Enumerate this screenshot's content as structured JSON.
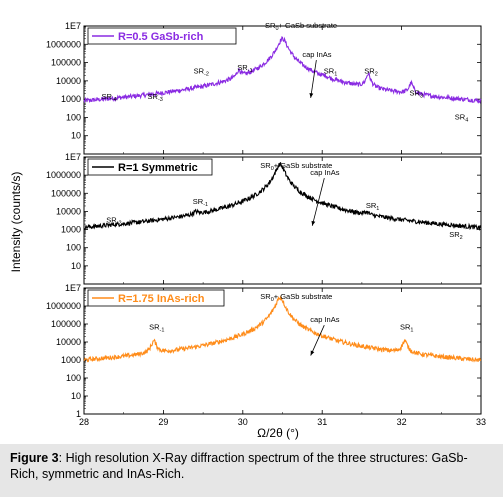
{
  "figure": {
    "caption_label": "Figure 3",
    "caption_text": ": High resolution X-Ray diffraction spectrum of the three structures: GaSb-Rich, symmetric and InAs-Rich."
  },
  "chart_data": {
    "type": "line",
    "ylabel": "Intensity (counts/s)",
    "xlabel": "Ω/2θ (°)",
    "xlim": [
      28,
      33
    ],
    "x_ticks": [
      "28",
      "29",
      "30",
      "31",
      "32",
      "33"
    ],
    "y_scale": "log",
    "panels": [
      {
        "legend": "R=0.5  GaSb-rich",
        "color": "#8a2be2",
        "ylim_log": [
          0,
          7
        ],
        "y_ticks": [
          "10",
          "100",
          "1000",
          "10000",
          "100000",
          "1000000",
          "1E7"
        ],
        "baseline": 0.45,
        "noise": 0.12,
        "peaks": [
          {
            "x": 28.36,
            "h": 5.7,
            "w": 0.025,
            "name": "SR",
            "sub": "-4"
          },
          {
            "x": 28.86,
            "h": 4.1,
            "w": 0.025,
            "name": "SR",
            "sub": "-3"
          },
          {
            "x": 29.41,
            "h": 7.2,
            "w": 0.025,
            "name": "SR",
            "sub": "-2"
          },
          {
            "x": 29.95,
            "h": 24000,
            "w": 0.025,
            "name": "SR",
            "sub": "-1"
          },
          {
            "x": 30.5,
            "h": 2000000,
            "w": 0.05,
            "name": "SR0+ GaSb substrate"
          },
          {
            "x": 30.88,
            "h": 800,
            "w": 0.2,
            "name": "cap InAs"
          },
          {
            "x": 31.04,
            "h": 2500,
            "w": 0.025,
            "name": "SR",
            "sub": "1"
          },
          {
            "x": 31.58,
            "h": 20000,
            "w": 0.025,
            "name": "SR",
            "sub": "2"
          },
          {
            "x": 32.12,
            "h": 5500,
            "w": 0.025,
            "name": "SR",
            "sub": "3"
          },
          {
            "x": 32.67,
            "h": 6,
            "w": 0.025,
            "name": "SR",
            "sub": "4"
          }
        ],
        "labels": [
          {
            "text": "SR",
            "sub": "-4",
            "x": 28.22,
            "y": 3.0
          },
          {
            "text": "SR",
            "sub": "-3",
            "x": 28.8,
            "y": 3.0
          },
          {
            "text": "SR",
            "sub": "-2",
            "x": 29.38,
            "y": 4.4
          },
          {
            "text": "SR",
            "sub": "-1",
            "x": 29.93,
            "y": 4.6
          },
          {
            "text": "SR",
            "sub": "0",
            "extra": "+ GaSb substrate",
            "x": 30.28,
            "y": 6.9
          },
          {
            "text": "cap InAs",
            "x": 30.75,
            "y": 5.3
          },
          {
            "text": "SR",
            "sub": "1",
            "x": 31.02,
            "y": 4.4
          },
          {
            "text": "SR",
            "sub": "2",
            "x": 31.53,
            "y": 4.4
          },
          {
            "text": "SR",
            "sub": "3",
            "x": 32.1,
            "y": 3.2
          },
          {
            "text": "SR",
            "sub": "4",
            "x": 32.67,
            "y": 1.9
          }
        ]
      },
      {
        "legend": "R=1 Symmetric",
        "color": "#000000",
        "ylim_log": [
          0,
          7
        ],
        "y_ticks": [
          "10",
          "100",
          "1000",
          "10000",
          "100000",
          "1000000",
          "1E7"
        ],
        "baseline": 0.6,
        "noise": 0.12,
        "peaks": [
          {
            "x": 28.37,
            "h": 60,
            "w": 0.03,
            "name": "SR",
            "sub": "-2"
          },
          {
            "x": 29.41,
            "h": 2800,
            "w": 0.03,
            "name": "SR",
            "sub": "-1"
          },
          {
            "x": 30.47,
            "h": 4000000,
            "w": 0.045,
            "name": "SR0+ GaSb substrate"
          },
          {
            "x": 30.9,
            "h": 1100,
            "w": 0.18,
            "name": "cap InAs"
          },
          {
            "x": 31.56,
            "h": 2500,
            "w": 0.03,
            "name": "SR",
            "sub": "1"
          },
          {
            "x": 32.63,
            "h": 60,
            "w": 0.03,
            "name": "SR",
            "sub": "2"
          }
        ],
        "labels": [
          {
            "text": "SR",
            "sub": "-2",
            "x": 28.28,
            "y": 3.4
          },
          {
            "text": "SR",
            "sub": "-1",
            "x": 29.37,
            "y": 4.4
          },
          {
            "text": "SR",
            "sub": "0",
            "extra": "+ GaSb substrate",
            "x": 30.22,
            "y": 6.4
          },
          {
            "text": "cap InAs",
            "x": 30.85,
            "y": 6.0
          },
          {
            "text": "SR",
            "sub": "1",
            "x": 31.55,
            "y": 4.2
          },
          {
            "text": "SR",
            "sub": "2",
            "x": 32.6,
            "y": 2.6
          }
        ]
      },
      {
        "legend": "R=1.75 InAs-rich",
        "color": "#ff8c1a",
        "ylim_log": [
          0,
          7
        ],
        "y_ticks": [
          "1",
          "10",
          "100",
          "1000",
          "10000",
          "100000",
          "1000000",
          "1E7"
        ],
        "baseline": 0.6,
        "noise": 0.12,
        "peaks": [
          {
            "x": 28.88,
            "h": 9000,
            "w": 0.03,
            "name": "SR",
            "sub": "-1"
          },
          {
            "x": 30.47,
            "h": 3000000,
            "w": 0.045,
            "name": "SR0+ GaSb substrate"
          },
          {
            "x": 30.88,
            "h": 1200,
            "w": 0.18,
            "name": "cap InAs"
          },
          {
            "x": 32.04,
            "h": 9000,
            "w": 0.03,
            "name": "SR",
            "sub": "1"
          }
        ],
        "labels": [
          {
            "text": "SR",
            "sub": "-1",
            "x": 28.82,
            "y": 4.7
          },
          {
            "text": "SR",
            "sub": "0",
            "extra": "+ GaSb substrate",
            "x": 30.22,
            "y": 6.4
          },
          {
            "text": "cap InAs",
            "x": 30.85,
            "y": 5.1
          },
          {
            "text": "SR",
            "sub": "1",
            "x": 31.98,
            "y": 4.7
          }
        ]
      }
    ]
  }
}
